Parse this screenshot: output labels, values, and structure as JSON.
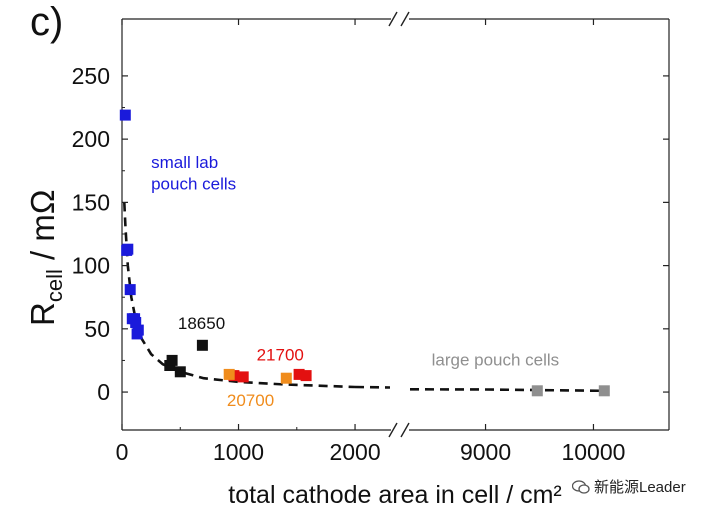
{
  "panel_label": "c)",
  "watermark": {
    "text": "新能源Leader",
    "icon": "wechat-icon"
  },
  "chart_data": {
    "type": "scatter",
    "xlabel": "total cathode area in cell / cm²",
    "ylabel_main": "R",
    "ylabel_sub": "cell",
    "ylabel_unit": " / mΩ",
    "ylim": [
      -30,
      295
    ],
    "yticks": [
      0,
      50,
      100,
      150,
      200,
      250
    ],
    "x_axis_break": {
      "left_range": [
        0,
        2300
      ],
      "right_range": [
        8300,
        10700
      ],
      "left_ticks": [
        0,
        1000,
        2000
      ],
      "right_ticks": [
        9000,
        10000
      ]
    },
    "colors": {
      "small_lab": "#1a1adb",
      "c18650": "#111111",
      "c21700": "#e31010",
      "c20700": "#f08c1c",
      "large_pouch": "#8f8f8f"
    },
    "annotations": [
      {
        "text": "small lab",
        "series": "small_lab",
        "x": 250,
        "y": 177
      },
      {
        "text": "pouch cells",
        "series": "small_lab",
        "x": 250,
        "y": 160
      },
      {
        "text": "18650",
        "series": "c18650",
        "x": 480,
        "y": 50
      },
      {
        "text": "21700",
        "series": "c21700",
        "x": 1155,
        "y": 25
      },
      {
        "text": "20700",
        "series": "c20700",
        "x": 900,
        "y": -11
      },
      {
        "text": "large pouch cells",
        "series": "large_pouch",
        "x": 8500,
        "y": 21
      }
    ],
    "series": [
      {
        "name": "small lab pouch cells",
        "color_key": "small_lab",
        "points": [
          [
            28,
            219
          ],
          [
            40,
            112
          ],
          [
            50,
            113
          ],
          [
            70,
            81
          ],
          [
            88,
            58
          ],
          [
            108,
            58
          ],
          [
            118,
            55
          ],
          [
            130,
            46
          ],
          [
            140,
            49
          ]
        ]
      },
      {
        "name": "18650",
        "color_key": "c18650",
        "points": [
          [
            410,
            21
          ],
          [
            430,
            25
          ],
          [
            500,
            16
          ],
          [
            690,
            37
          ]
        ]
      },
      {
        "name": "21700",
        "color_key": "c21700",
        "points": [
          [
            960,
            13
          ],
          [
            1040,
            12
          ],
          [
            1520,
            14
          ],
          [
            1580,
            13
          ]
        ]
      },
      {
        "name": "20700",
        "color_key": "c20700",
        "points": [
          [
            920,
            14
          ],
          [
            1410,
            11
          ]
        ]
      },
      {
        "name": "large pouch cells",
        "color_key": "large_pouch",
        "points": [
          [
            9480,
            1
          ],
          [
            10100,
            1
          ]
        ]
      }
    ],
    "fit_curve": [
      [
        20,
        150
      ],
      [
        30,
        130
      ],
      [
        50,
        100
      ],
      [
        80,
        75
      ],
      [
        120,
        56
      ],
      [
        170,
        42
      ],
      [
        250,
        30
      ],
      [
        350,
        22
      ],
      [
        500,
        16
      ],
      [
        700,
        11
      ],
      [
        1000,
        8
      ],
      [
        1400,
        6
      ],
      [
        2000,
        4
      ],
      [
        9000,
        2
      ],
      [
        10100,
        1
      ]
    ]
  }
}
